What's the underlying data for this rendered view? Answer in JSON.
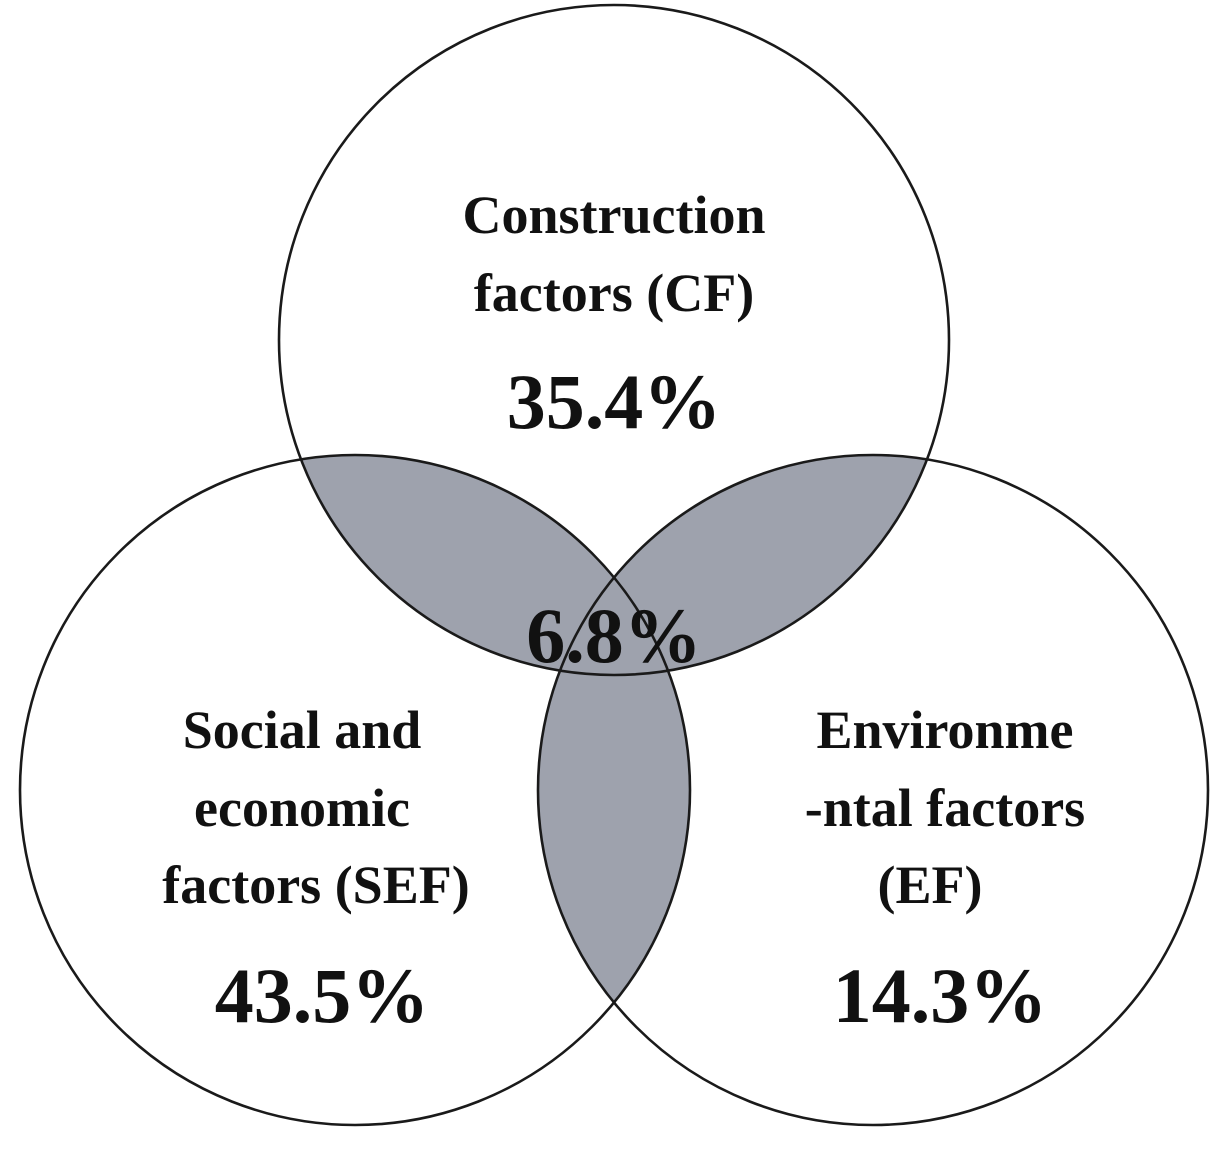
{
  "diagram": {
    "sets": [
      {
        "id": "cf",
        "name_lines": [
          "Construction",
          "factors (CF)"
        ],
        "value": "35.4%"
      },
      {
        "id": "sef",
        "name_lines": [
          "Social and",
          "economic",
          "factors (SEF)"
        ],
        "value": "43.5%"
      },
      {
        "id": "ef",
        "name_lines": [
          "Environme",
          "-ntal factors",
          "(EF)"
        ],
        "value": "14.3%"
      }
    ],
    "intersection": {
      "value": "6.8%",
      "fill_color": "#9ea2ad"
    },
    "outline_color": "#1a1a1a",
    "background_color": "#ffffff"
  }
}
